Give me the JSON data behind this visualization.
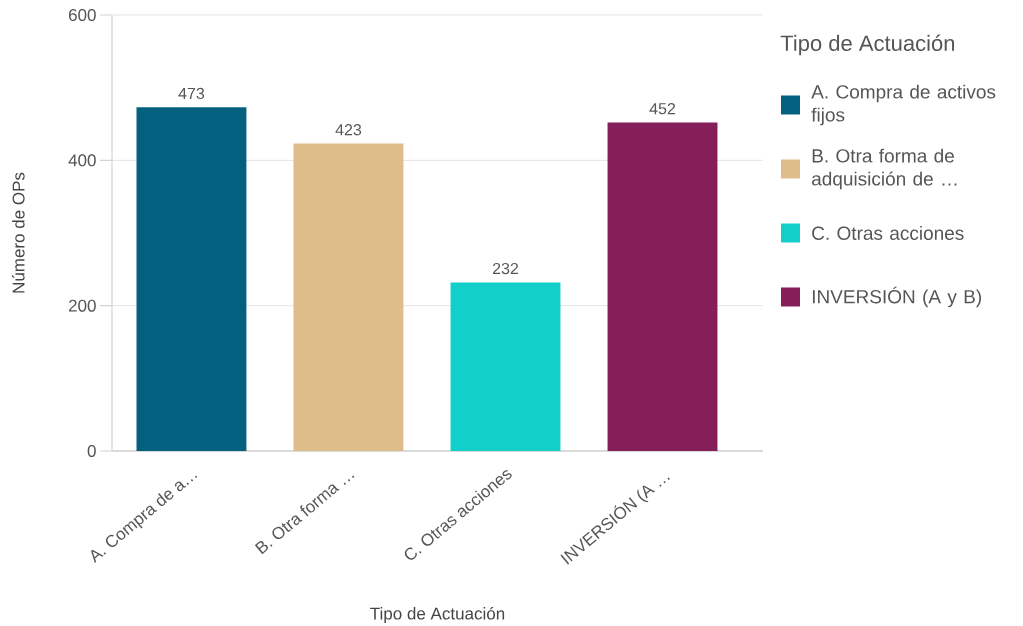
{
  "chart_data": {
    "type": "bar",
    "xlabel": "Tipo de Actuación",
    "ylabel": "Número de OPs",
    "legend_title": "Tipo de Actuación",
    "categories": [
      "A. Compra de a…",
      "B. Otra forma …",
      "C. Otras acciones",
      "INVERSIÓN (A …"
    ],
    "series": [
      {
        "name": "A. Compra de activos fijos",
        "color": "#03607e",
        "values": [
          473,
          null,
          null,
          null
        ]
      },
      {
        "name": "B. Otra forma de adquisición de …",
        "color": "#dfbd8b",
        "values": [
          null,
          423,
          null,
          null
        ]
      },
      {
        "name": "C. Otras acciones",
        "color": "#13cfc9",
        "values": [
          null,
          null,
          232,
          null
        ]
      },
      {
        "name": "INVERSIÓN (A y B)",
        "color": "#851f5a",
        "values": [
          null,
          null,
          null,
          452
        ]
      }
    ],
    "ylim": [
      0,
      600
    ],
    "yticks": [
      0,
      200,
      400,
      600
    ],
    "grid": "y",
    "legend": "right",
    "data_labels": true
  }
}
